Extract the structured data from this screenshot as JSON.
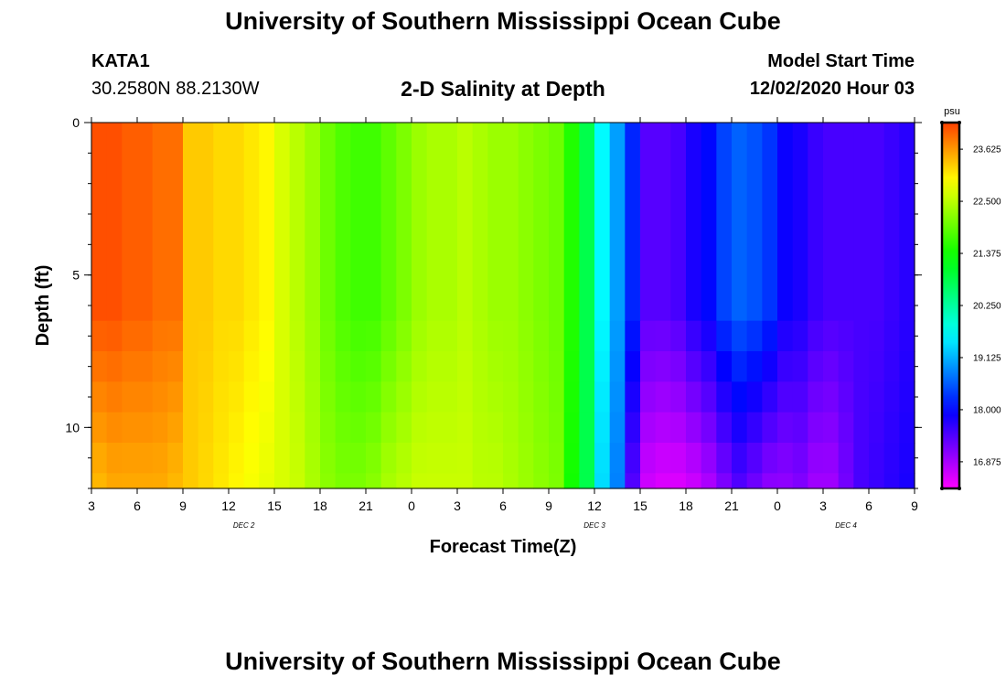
{
  "header": {
    "title": "University of Southern Mississippi Ocean Cube",
    "station_id": "KATA1",
    "station_coords": "30.2580N 88.2130W",
    "subtitle": "2-D Salinity at Depth",
    "model_start_label": "Model Start Time",
    "model_start_value": "12/02/2020 Hour 03"
  },
  "footer": {
    "title": "University of Southern Mississippi Ocean Cube"
  },
  "chart_data": {
    "type": "heatmap",
    "title": "2-D Salinity at Depth",
    "xlabel": "Forecast Time(Z)",
    "ylabel": "Depth (ft)",
    "x_tick_labels": [
      "3",
      "6",
      "9",
      "12",
      "15",
      "18",
      "21",
      "0",
      "3",
      "6",
      "9",
      "12",
      "15",
      "18",
      "21",
      "0",
      "3",
      "6",
      "9"
    ],
    "x_day_labels": [
      {
        "label": "DEC 2",
        "hour": 10
      },
      {
        "label": "DEC 3",
        "hour": 33
      },
      {
        "label": "DEC 4",
        "hour": 49.5
      }
    ],
    "x_range_hours": [
      0,
      54
    ],
    "y_tick_labels": [
      "0",
      "5",
      "10"
    ],
    "y_ticks": [
      0,
      5,
      10
    ],
    "ylim": [
      0,
      12
    ],
    "y_reversed": true,
    "colorbar": {
      "unit": "psu",
      "range": [
        16.3,
        24.2
      ],
      "tick_labels": [
        "23.625",
        "22.500",
        "21.375",
        "20.250",
        "19.125",
        "18.000",
        "16.875"
      ],
      "ticks": [
        23.625,
        22.5,
        21.375,
        20.25,
        19.125,
        18.0,
        16.875
      ]
    },
    "depth_rows": [
      0,
      6.5,
      7.5,
      8.5,
      9.5,
      10.5,
      11.5,
      12
    ],
    "time_cols_hours": [
      0,
      1,
      2,
      3,
      4,
      5,
      6,
      7,
      8,
      9,
      10,
      11,
      12,
      13,
      14,
      15,
      16,
      17,
      18,
      19,
      20,
      21,
      22,
      23,
      24,
      25,
      26,
      27,
      28,
      29,
      30,
      31,
      32,
      33,
      34,
      35,
      36,
      37,
      38,
      39,
      40,
      41,
      42,
      43,
      44,
      45,
      46,
      47,
      48,
      49,
      50,
      51,
      52,
      53
    ],
    "surface_salinity": [
      24.1,
      24.1,
      24.0,
      24.0,
      23.9,
      23.9,
      23.3,
      23.3,
      23.2,
      23.2,
      23.1,
      23.0,
      22.7,
      22.5,
      22.3,
      22.0,
      21.8,
      21.7,
      21.7,
      21.9,
      22.1,
      22.3,
      22.4,
      22.4,
      22.5,
      22.4,
      22.3,
      22.3,
      22.2,
      22.1,
      22.0,
      21.5,
      20.8,
      19.6,
      19.0,
      18.2,
      17.4,
      17.4,
      17.5,
      17.8,
      18.0,
      18.4,
      18.6,
      18.5,
      18.3,
      17.9,
      17.8,
      17.6,
      17.5,
      17.5,
      17.5,
      17.5,
      17.6,
      17.7
    ],
    "bottom_salinity": [
      23.4,
      23.5,
      23.5,
      23.5,
      23.5,
      23.4,
      23.3,
      23.2,
      23.1,
      23.0,
      22.9,
      22.8,
      22.7,
      22.6,
      22.4,
      22.2,
      22.1,
      22.1,
      22.2,
      22.4,
      22.5,
      22.6,
      22.6,
      22.6,
      22.6,
      22.5,
      22.5,
      22.4,
      22.3,
      22.2,
      22.1,
      21.4,
      20.8,
      19.4,
      18.8,
      17.4,
      16.6,
      16.5,
      16.5,
      16.6,
      16.8,
      17.1,
      17.4,
      17.2,
      17.0,
      17.0,
      17.1,
      16.9,
      16.9,
      17.2,
      17.5,
      17.6,
      17.7,
      17.8
    ]
  }
}
